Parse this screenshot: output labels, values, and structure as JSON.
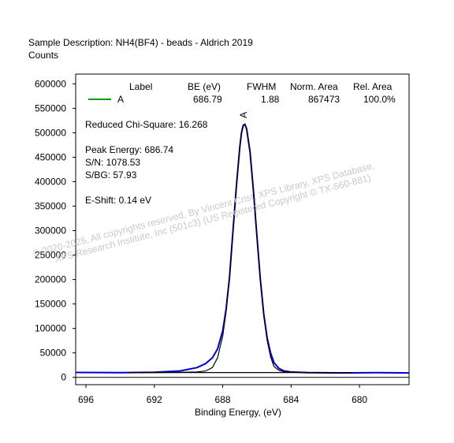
{
  "header": {
    "sample_description": "Sample Description:  NH4(BF4) - beads - Aldrich 2019",
    "y_units": "Counts"
  },
  "legend": {
    "columns": [
      "Label",
      "BE (eV)",
      "FWHM",
      "Norm. Area",
      "Rel. Area"
    ],
    "rows": [
      {
        "label": "A",
        "be": "686.79",
        "fwhm": "1.88",
        "norm_area": "867473",
        "rel_area": "100.0%",
        "color": "#00a000"
      }
    ]
  },
  "stats": {
    "chi_square": "Reduced Chi-Square: 16.268",
    "peak_energy": "Peak Energy: 686.74",
    "sn": "S/N: 1078.53",
    "sbg": "S/BG: 57.93",
    "eshift": "E-Shift: 0.14 eV"
  },
  "watermark": {
    "line1": "© 2020-2025,  All copyrights reserved,   By Vincent Crist,  XPS Library, XPS Database,",
    "line2": "XPS Research Institute, Inc (501c3)  (US Registered Copyright © TX-560-881)"
  },
  "chart_data": {
    "type": "line",
    "xlabel": "Binding Energy, (eV)",
    "ylabel": "Counts",
    "xlim": [
      696.6,
      677.1
    ],
    "ylim": [
      -15000,
      620000
    ],
    "x_reversed": true,
    "x_ticks": [
      696,
      692,
      688,
      684,
      680
    ],
    "y_ticks": [
      0,
      50000,
      100000,
      150000,
      200000,
      250000,
      300000,
      350000,
      400000,
      450000,
      500000,
      550000,
      600000
    ],
    "peak_label": "A",
    "peak_label_x": 686.79,
    "series": [
      {
        "name": "A",
        "color": "#0000cc",
        "x": [
          696.6,
          694.0,
          692.0,
          690.5,
          689.5,
          689.0,
          688.6,
          688.3,
          688.0,
          687.8,
          687.6,
          687.4,
          687.2,
          687.0,
          686.9,
          686.8,
          686.7,
          686.6,
          686.4,
          686.2,
          686.0,
          685.8,
          685.6,
          685.4,
          685.2,
          685.0,
          684.7,
          684.4,
          684.0,
          683.0,
          681.0,
          679.0,
          677.1
        ],
        "y": [
          10000,
          9500,
          10500,
          13000,
          20000,
          28000,
          40000,
          58000,
          95000,
          140000,
          205000,
          300000,
          390000,
          470000,
          500000,
          515000,
          517000,
          508000,
          460000,
          380000,
          290000,
          200000,
          130000,
          80000,
          50000,
          30000,
          18000,
          13000,
          11000,
          9500,
          9000,
          9500,
          9000
        ]
      },
      {
        "color": "#000000",
        "x": [
          693.5,
          692.0,
          690.5,
          689.5,
          689.0,
          688.6,
          688.3,
          688.0,
          687.8,
          687.6,
          687.4,
          687.2,
          687.0,
          686.9,
          686.8,
          686.7,
          686.6,
          686.4,
          686.2,
          686.0,
          685.8,
          685.6,
          685.4,
          685.2,
          685.0,
          684.7,
          684.4,
          684.0,
          683.0,
          681.0,
          680.4
        ],
        "y": [
          9800,
          9900,
          10200,
          11000,
          13000,
          20000,
          40000,
          85000,
          135000,
          203000,
          298000,
          392000,
          472000,
          502000,
          516000,
          518000,
          509000,
          461000,
          381000,
          291000,
          200000,
          127000,
          75000,
          42000,
          22000,
          14000,
          11500,
          10500,
          10000,
          9800,
          9800
        ]
      },
      {
        "color": "#000000",
        "x": [
          693.5,
          680.4
        ],
        "y": [
          9800,
          9800
        ]
      }
    ]
  }
}
